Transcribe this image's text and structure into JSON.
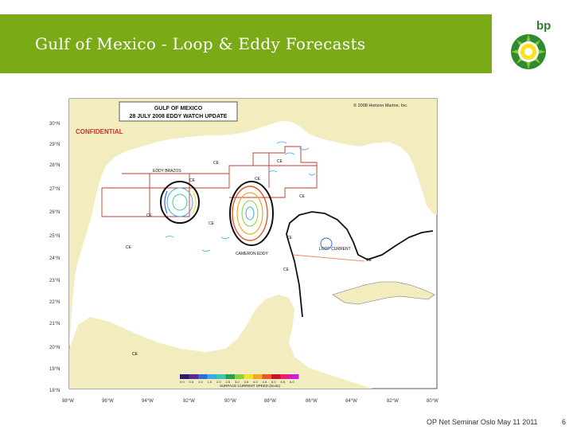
{
  "slide": {
    "title": "Gulf of Mexico - Loop & Eddy Forecasts",
    "footer": "OP Net Seminar Oslo May 11 2011",
    "page_number": "6",
    "logo_text": "bp"
  },
  "map": {
    "header_line1": "GULF OF MEXICO",
    "header_line2": "28 JULY 2008 EDDY WATCH UPDATE",
    "copyright": "© 2008 Horizon Marine, Inc.",
    "confidential": "CONFIDENTIAL",
    "lat_labels": [
      "30°N",
      "29°N",
      "28°N",
      "27°N",
      "26°N",
      "25°N",
      "24°N",
      "23°N",
      "22°N",
      "21°N",
      "20°N",
      "19°N",
      "18°N"
    ],
    "lon_labels": [
      "98°W",
      "96°W",
      "94°W",
      "92°W",
      "90°W",
      "88°W",
      "86°W",
      "84°W",
      "82°W",
      "80°W"
    ],
    "feature_labels": {
      "eddy_brazos": "EDDY BRAZOS",
      "eddy_cameron": "CAMERON EDDY",
      "loop_current": "LOOP CURRENT"
    },
    "ce_markers": [
      "CE",
      "CE",
      "CE",
      "CE",
      "CE",
      "CE",
      "CE",
      "CE",
      "CE",
      "CE",
      "CE",
      "CE"
    ],
    "legend_title": "SURFACE CURRENT SPEED (knots)",
    "legend_ticks": [
      "0.0",
      "0.5",
      "1.0",
      "1.5",
      "2.0",
      "2.5",
      "3.0",
      "3.5",
      "4.0",
      "4.5",
      "5.0",
      "5.5",
      "6.0"
    ],
    "legend_colors": [
      "#2b1b6e",
      "#5b2c8f",
      "#2d6fd1",
      "#3fa9e8",
      "#41c3b5",
      "#2e9e4a",
      "#8ccf3c",
      "#f2e229",
      "#f5a623",
      "#e8562a",
      "#c4162a",
      "#e61e78",
      "#d11dd1"
    ],
    "colors": {
      "brand_green": "#7aaa16",
      "land": "#f2ecbe",
      "water": "#ffffff",
      "eddy_outline": "#111111",
      "lease_blocks": "#c0392b"
    }
  }
}
